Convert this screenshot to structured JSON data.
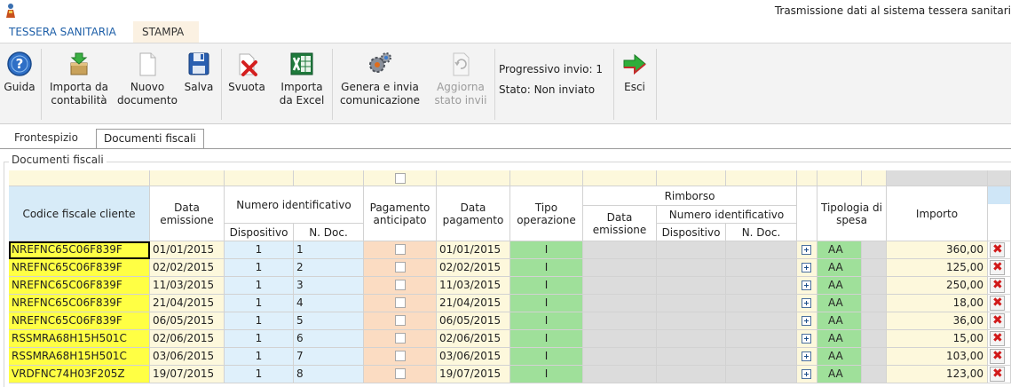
{
  "window": {
    "title": "Trasmissione dati al sistema tessera sanitari"
  },
  "ribbon_tabs": [
    "TESSERA SANITARIA",
    "STAMPA"
  ],
  "ribbon": {
    "buttons": [
      {
        "label": "Guida",
        "icon": "help-icon"
      },
      {
        "label": "Importa da contabilità",
        "icon": "import-icon"
      },
      {
        "label": "Nuovo documento",
        "icon": "new-document-icon"
      },
      {
        "label": "Salva",
        "icon": "save-icon"
      },
      {
        "label": "Svuota",
        "icon": "clear-icon"
      },
      {
        "label": "Importa da Excel",
        "icon": "excel-icon"
      },
      {
        "label": "Genera e invia comunicazione",
        "icon": "gears-icon"
      },
      {
        "label": "Aggiorna stato invii",
        "icon": "refresh-icon",
        "disabled": true
      },
      {
        "label": "Esci",
        "icon": "exit-arrow-icon"
      }
    ],
    "progressivo": "Progressivo invio: 1",
    "stato": "Stato: Non inviato"
  },
  "inner_tabs": [
    "Frontespizio",
    "Documenti fiscali"
  ],
  "group_title": "Documenti fiscali",
  "grid": {
    "headers": {
      "codice_fiscale": "Codice fiscale cliente",
      "data_emissione": "Data emissione",
      "numero_identificativo": "Numero identificativo",
      "dispositivo": "Dispositivo",
      "n_doc": "N. Doc.",
      "pagamento_anticipato": "Pagamento anticipato",
      "data_pagamento": "Data pagamento",
      "tipo_operazione": "Tipo operazione",
      "rimborso": "Rimborso",
      "r_data_emissione": "Data emissione",
      "r_numero_identificativo": "Numero identificativo",
      "r_dispositivo": "Dispositivo",
      "r_n_doc": "N. Doc.",
      "tipologia_spesa": "Tipologia di spesa",
      "importo": "Importo"
    },
    "rows": [
      {
        "cf": "NREFNC65C06F839F",
        "data_emissione": "01/01/2015",
        "dispositivo": "1",
        "n_doc": "1",
        "data_pagamento": "01/01/2015",
        "tipo": "I",
        "tipologia": "AA",
        "importo": "360,00"
      },
      {
        "cf": "NREFNC65C06F839F",
        "data_emissione": "02/02/2015",
        "dispositivo": "1",
        "n_doc": "2",
        "data_pagamento": "02/02/2015",
        "tipo": "I",
        "tipologia": "AA",
        "importo": "125,00"
      },
      {
        "cf": "NREFNC65C06F839F",
        "data_emissione": "11/03/2015",
        "dispositivo": "1",
        "n_doc": "3",
        "data_pagamento": "11/03/2015",
        "tipo": "I",
        "tipologia": "AA",
        "importo": "250,00"
      },
      {
        "cf": "NREFNC65C06F839F",
        "data_emissione": "21/04/2015",
        "dispositivo": "1",
        "n_doc": "4",
        "data_pagamento": "21/04/2015",
        "tipo": "I",
        "tipologia": "AA",
        "importo": "18,00"
      },
      {
        "cf": "NREFNC65C06F839F",
        "data_emissione": "06/05/2015",
        "dispositivo": "1",
        "n_doc": "5",
        "data_pagamento": "06/05/2015",
        "tipo": "I",
        "tipologia": "AA",
        "importo": "36,00"
      },
      {
        "cf": "RSSMRA68H15H501C",
        "data_emissione": "02/06/2015",
        "dispositivo": "1",
        "n_doc": "6",
        "data_pagamento": "02/06/2015",
        "tipo": "I",
        "tipologia": "AA",
        "importo": "15,00"
      },
      {
        "cf": "RSSMRA68H15H501C",
        "data_emissione": "03/06/2015",
        "dispositivo": "1",
        "n_doc": "7",
        "data_pagamento": "03/06/2015",
        "tipo": "I",
        "tipologia": "AA",
        "importo": "103,00"
      },
      {
        "cf": "VRDFNC74H03F205Z",
        "data_emissione": "19/07/2015",
        "dispositivo": "1",
        "n_doc": "8",
        "data_pagamento": "19/07/2015",
        "tipo": "I",
        "tipologia": "AA",
        "importo": "123,00"
      }
    ]
  },
  "colors": {
    "cf_cell": "#ffff44",
    "cream": "#fdf8dc",
    "blue_light": "#dff0fb",
    "orange_light": "#fbdcc2",
    "green": "#9fe09a",
    "gray": "#dcdcdc",
    "header_blue": "#d7ebf8",
    "accent": "#1e5fa8"
  }
}
